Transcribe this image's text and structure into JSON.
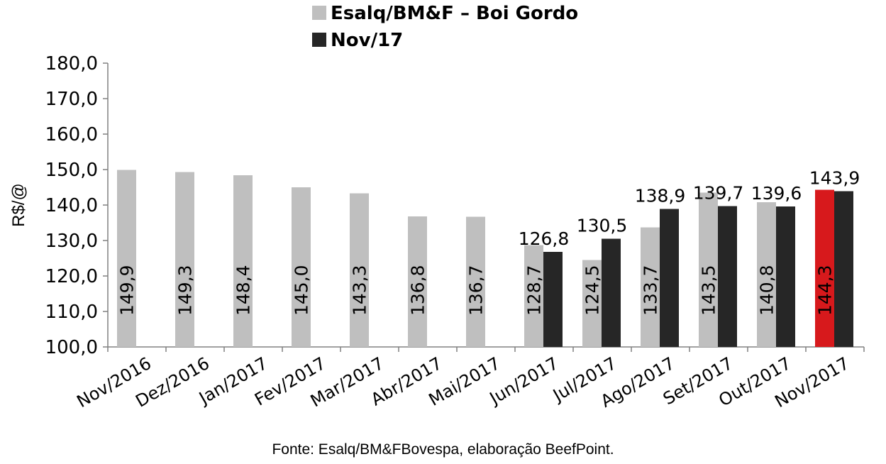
{
  "chart_data": {
    "type": "bar",
    "categories": [
      "Nov/2016",
      "Dez/2016",
      "Jan/2017",
      "Fev/2017",
      "Mar/2017",
      "Abr/2017",
      "Mai/2017",
      "Jun/2017",
      "Jul/2017",
      "Ago/2017",
      "Set/2017",
      "Out/2017",
      "Nov/2017"
    ],
    "series": [
      {
        "name": "Esalq/BM&F – Boi Gordo",
        "color": "#bfbfbf",
        "values": [
          149.9,
          149.3,
          148.4,
          145.0,
          143.3,
          136.8,
          136.7,
          128.7,
          124.5,
          133.7,
          143.5,
          140.8,
          144.3
        ],
        "labels": [
          "149,9",
          "149,3",
          "148,4",
          "145,0",
          "143,3",
          "136,8",
          "136,7",
          "128,7",
          "124,5",
          "133,7",
          "143,5",
          "140,8",
          "144,3"
        ]
      },
      {
        "name": "Nov/17",
        "color": "#262626",
        "values": [
          null,
          null,
          null,
          null,
          null,
          null,
          null,
          126.8,
          130.5,
          138.9,
          139.7,
          139.6,
          143.9
        ],
        "labels": [
          "",
          "",
          "",
          "",
          "",
          "",
          "",
          "126,8",
          "130,5",
          "138,9",
          "139,7",
          "139,6",
          "143,9"
        ]
      }
    ],
    "highlight": {
      "category": "Nov/2017",
      "series": 0,
      "color": "#d7191c"
    },
    "ylabel": "R$/@",
    "ylim": [
      100,
      180
    ],
    "yticks": [
      100,
      110,
      120,
      130,
      140,
      150,
      160,
      170,
      180
    ],
    "ytick_labels": [
      "100,0",
      "110,0",
      "120,0",
      "130,0",
      "140,0",
      "150,0",
      "160,0",
      "170,0",
      "180,0"
    ],
    "grid": false,
    "legend_position": "top-center"
  },
  "source_note": "Fonte: Esalq/BM&FBovespa, elaboração BeefPoint."
}
